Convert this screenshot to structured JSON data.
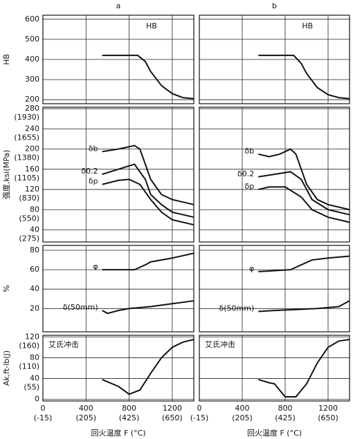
{
  "chart_data": [
    {
      "type": "line",
      "title": "a",
      "ylabel": "HB",
      "xlim": [
        0,
        1400
      ],
      "ylim": [
        180,
        620
      ],
      "yticks": [
        200,
        300,
        400,
        500,
        600
      ],
      "legend": "top-center",
      "series": [
        {
          "name": "HB",
          "color": "#111111",
          "x": [
            550,
            700,
            880,
            950,
            1000,
            1100,
            1200,
            1300,
            1400
          ],
          "values": [
            420,
            420,
            420,
            390,
            340,
            270,
            230,
            210,
            205
          ]
        }
      ]
    },
    {
      "type": "line",
      "title": "b",
      "xlim": [
        0,
        1400
      ],
      "ylim": [
        180,
        620
      ],
      "yticks": [
        200,
        300,
        400,
        500,
        600
      ],
      "legend": "top-center",
      "series": [
        {
          "name": "HB",
          "color": "#111111",
          "x": [
            550,
            880,
            950,
            1000,
            1100,
            1200,
            1300,
            1400
          ],
          "values": [
            420,
            420,
            380,
            330,
            260,
            225,
            210,
            205
          ]
        }
      ]
    },
    {
      "type": "line",
      "ylabel": "强度,ksi(MPa)",
      "xlim": [
        0,
        1400
      ],
      "ylim": [
        16,
        283
      ],
      "yticks": [
        40,
        80,
        120,
        160,
        200,
        240,
        280
      ],
      "ytick_sublabels": [
        "(275)",
        "(550)",
        "(830)",
        "(1105)",
        "(1380)",
        "(1655)",
        "(1930)"
      ],
      "series": [
        {
          "name": "δb",
          "color": "#111111",
          "x": [
            550,
            700,
            850,
            900,
            1000,
            1100,
            1200,
            1400
          ],
          "values": [
            195,
            200,
            207,
            200,
            140,
            110,
            100,
            90
          ]
        },
        {
          "name": "δ0.2",
          "color": "#111111",
          "x": [
            550,
            700,
            850,
            950,
            1000,
            1100,
            1200,
            1400
          ],
          "values": [
            150,
            160,
            170,
            140,
            110,
            90,
            75,
            65
          ]
        },
        {
          "name": "δp",
          "color": "#111111",
          "x": [
            550,
            700,
            800,
            900,
            1000,
            1100,
            1200,
            1400
          ],
          "values": [
            130,
            138,
            140,
            130,
            100,
            75,
            60,
            50
          ]
        }
      ]
    },
    {
      "type": "line",
      "xlim": [
        0,
        1400
      ],
      "ylim": [
        16,
        283
      ],
      "yticks": [
        40,
        80,
        120,
        160,
        200,
        240,
        280
      ],
      "series": [
        {
          "name": "δb",
          "color": "#111111",
          "x": [
            550,
            650,
            750,
            850,
            900,
            1000,
            1100,
            1200,
            1400
          ],
          "values": [
            190,
            185,
            190,
            200,
            190,
            130,
            100,
            90,
            80
          ]
        },
        {
          "name": "δ0.2",
          "color": "#111111",
          "x": [
            550,
            700,
            850,
            950,
            1050,
            1200,
            1400
          ],
          "values": [
            145,
            150,
            155,
            140,
            100,
            80,
            70
          ]
        },
        {
          "name": "δp",
          "color": "#111111",
          "x": [
            550,
            650,
            800,
            950,
            1050,
            1200,
            1400
          ],
          "values": [
            120,
            125,
            125,
            105,
            80,
            65,
            55
          ]
        }
      ]
    },
    {
      "type": "line",
      "ylabel": "%",
      "xlim": [
        0,
        1400
      ],
      "ylim": [
        -4,
        85
      ],
      "yticks": [
        20,
        40,
        60,
        80
      ],
      "series": [
        {
          "name": "φ",
          "color": "#111111",
          "x": [
            550,
            700,
            850,
            950,
            1000,
            1200,
            1400
          ],
          "values": [
            60,
            60,
            60,
            65,
            68,
            72,
            77
          ]
        },
        {
          "name": "δ(50mm)",
          "color": "#111111",
          "x": [
            550,
            600,
            700,
            800,
            1000,
            1200,
            1400
          ],
          "values": [
            18,
            15,
            18,
            20,
            22,
            25,
            28
          ]
        }
      ]
    },
    {
      "type": "line",
      "xlim": [
        0,
        1400
      ],
      "ylim": [
        -4,
        85
      ],
      "yticks": [
        20,
        40,
        60,
        80
      ],
      "series": [
        {
          "name": "φ",
          "color": "#111111",
          "x": [
            550,
            700,
            850,
            950,
            1050,
            1200,
            1400
          ],
          "values": [
            58,
            59,
            60,
            65,
            70,
            72,
            74
          ]
        },
        {
          "name": "δ(50mm)",
          "color": "#111111",
          "x": [
            550,
            700,
            900,
            1100,
            1300,
            1400
          ],
          "values": [
            17,
            18,
            19,
            20,
            22,
            28
          ]
        }
      ]
    },
    {
      "type": "line",
      "ylabel": "Ak,ft-lb(J)",
      "xlabel": "回火温度 F (°C)",
      "xlim": [
        0,
        1400
      ],
      "ylim": [
        -3,
        123
      ],
      "yticks": [
        0,
        40,
        80,
        120
      ],
      "ytick_sublabels": [
        null,
        "(55)",
        "(110)",
        "(160)"
      ],
      "xticks": [
        0,
        400,
        800,
        1200
      ],
      "xtick_sublabels": [
        "(-15)",
        "(205)",
        "(425)",
        "(650)"
      ],
      "legend": "top-left",
      "series": [
        {
          "name": "艾氏冲击",
          "color": "#111111",
          "x": [
            550,
            700,
            800,
            900,
            1000,
            1100,
            1200,
            1300,
            1400
          ],
          "values": [
            38,
            25,
            10,
            18,
            50,
            80,
            100,
            110,
            115
          ]
        }
      ]
    },
    {
      "type": "line",
      "xlabel": "回火温度 F (°C)",
      "xlim": [
        0,
        1400
      ],
      "ylim": [
        -3,
        123
      ],
      "yticks": [
        0,
        40,
        80,
        120
      ],
      "xticks": [
        0,
        400,
        800,
        1200
      ],
      "xtick_sublabels": [
        "(-15)",
        "(205)",
        "(425)",
        "(650)"
      ],
      "legend": "top-left",
      "series": [
        {
          "name": "艾氏冲击",
          "color": "#111111",
          "x": [
            550,
            650,
            700,
            800,
            900,
            1000,
            1100,
            1200,
            1300,
            1400
          ],
          "values": [
            38,
            32,
            30,
            5,
            5,
            30,
            70,
            100,
            112,
            115
          ]
        }
      ]
    }
  ]
}
